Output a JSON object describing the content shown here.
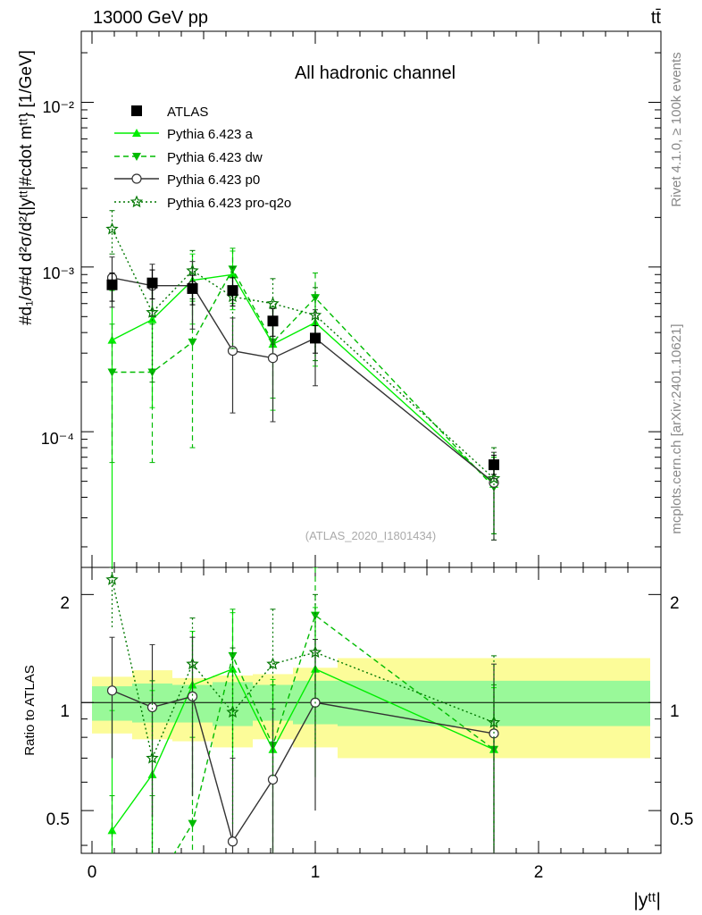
{
  "header": {
    "left": "13000 GeV pp",
    "right": "tt̄"
  },
  "side": {
    "rivet": "Rivet 4.1.0, ≥ 100k events",
    "mcplots": "mcplots.cern.ch [arXiv:2401.10621]"
  },
  "top_panel": {
    "title": "All hadronic channel",
    "watermark": "(ATLAS_2020_I1801434)",
    "ylabel": "#d₁/σ#d d²σ/d²{|yᵗᵗ|#cdot mᵗᵗ} [1/GeV]"
  },
  "bottom_panel": {
    "ylabel": "Ratio to ATLAS"
  },
  "xaxis": {
    "label": "|yᵗᵗ|"
  },
  "colors": {
    "atlas": "#000000",
    "a": "#00ee00",
    "dw": "#00bb00",
    "p0": "#333333",
    "proq2o": "#007700",
    "band_inner": "#99f999",
    "band_outer": "#fcfc99"
  },
  "chart_data": {
    "type": "line",
    "title": "All hadronic channel",
    "xlabel": "|y^tt|",
    "ylabel": "1/σ d²σ/d|y^tt| d m^tt [1/GeV]",
    "ylabel_ratio": "Ratio to ATLAS",
    "xlim": [
      -0.1,
      2.56
    ],
    "ylim": [
      1.5e-05,
      0.027
    ],
    "ylim_ratio": [
      0.38,
      2.38
    ],
    "yscale": "log",
    "x_ticks": [
      "0",
      "1",
      "2"
    ],
    "y_ticks": [
      "10⁻⁴",
      "10⁻³",
      "10⁻²"
    ],
    "ratio_ticks": [
      "0.5",
      "1",
      "2"
    ],
    "x": [
      0.09,
      0.27,
      0.45,
      0.63,
      0.81,
      1.0,
      1.8
    ],
    "bin_edges": [
      0,
      0.18,
      0.36,
      0.54,
      0.72,
      0.9,
      1.1,
      2.5
    ],
    "atlas": [
      0.00078,
      0.0008,
      0.00074,
      0.00072,
      0.00047,
      0.00037,
      6.3e-05
    ],
    "ratio_band_inner": [
      [
        0.89,
        1.11
      ],
      [
        0.88,
        1.13
      ],
      [
        0.88,
        1.12
      ],
      [
        0.86,
        1.14
      ],
      [
        0.89,
        1.12
      ],
      [
        0.87,
        1.15
      ],
      [
        0.86,
        1.15
      ]
    ],
    "ratio_band_outer": [
      [
        0.82,
        1.18
      ],
      [
        0.79,
        1.23
      ],
      [
        0.78,
        1.17
      ],
      [
        0.75,
        1.19
      ],
      [
        0.79,
        1.2
      ],
      [
        0.75,
        1.25
      ],
      [
        0.7,
        1.33
      ]
    ],
    "series": [
      {
        "name": "ATLAS",
        "key": "atlas",
        "marker": "square",
        "dash": "",
        "values": [
          0.00078,
          0.0008,
          0.00074,
          0.00072,
          0.00047,
          0.00037,
          6.3e-05
        ],
        "ratio": [
          1,
          1,
          1,
          1,
          1,
          1,
          1
        ],
        "err_lo": [
          0.00062,
          0.00064,
          0.00059,
          0.00058,
          0.00038,
          0.0003,
          5.5e-05
        ],
        "err_hi": [
          0.00092,
          0.00096,
          0.00089,
          0.00086,
          0.00056,
          0.00044,
          7.2e-05
        ],
        "rerr_lo": [
          null,
          null,
          null,
          null,
          null,
          null,
          null
        ],
        "rerr_hi": [
          null,
          null,
          null,
          null,
          null,
          null,
          null
        ]
      },
      {
        "name": "Pythia 6.423 a",
        "key": "a",
        "marker": "triangle-up",
        "dash": "",
        "values": [
          0.00036,
          0.00048,
          0.00083,
          0.0009,
          0.00034,
          0.00046,
          4.8e-05
        ],
        "ratio": [
          0.44,
          0.63,
          1.12,
          1.24,
          0.74,
          1.24,
          0.74
        ],
        "err_lo": [
          1.5e-05,
          0.00014,
          0.00045,
          0.00055,
          0.000135,
          0.00025,
          2.4e-05
        ],
        "err_hi": [
          0.00072,
          0.00082,
          0.0012,
          0.00125,
          0.00056,
          0.00068,
          7e-05
        ],
        "rerr_lo": [
          0.3,
          0.2,
          0.55,
          0.7,
          0.38,
          0.62,
          0.36
        ],
        "rerr_hi": [
          0.95,
          1.08,
          1.58,
          1.78,
          1.16,
          1.84,
          1.1
        ]
      },
      {
        "name": "Pythia 6.423 dw",
        "key": "dw",
        "marker": "triangle-down",
        "dash": "6,4",
        "values": [
          0.00023,
          0.00023,
          0.00035,
          0.00097,
          0.00035,
          0.00065,
          4.6e-05
        ],
        "ratio": [
          0.3,
          0.3,
          0.46,
          1.35,
          0.76,
          1.75,
          0.74
        ],
        "err_lo": [
          6.5e-05,
          6.5e-05,
          8e-05,
          0.0006,
          0.00016,
          0.00038,
          2.2e-05
        ],
        "err_hi": [
          0.00045,
          0.00045,
          0.00062,
          0.0013,
          0.00056,
          0.00092,
          7e-05
        ],
        "rerr_lo": [
          0.2,
          0.2,
          0.22,
          0.75,
          0.38,
          1.05,
          0.36
        ],
        "rerr_hi": [
          0.55,
          0.55,
          0.8,
          1.82,
          1.12,
          2.4,
          1.12
        ]
      },
      {
        "name": "Pythia 6.423 p0",
        "key": "p0",
        "marker": "circle",
        "dash": "",
        "values": [
          0.00086,
          0.00077,
          0.00077,
          0.00031,
          0.00028,
          0.00037,
          4.9e-05
        ],
        "ratio": [
          1.08,
          0.97,
          1.04,
          0.41,
          0.61,
          1.0,
          0.82
        ],
        "err_lo": [
          0.00057,
          0.0005,
          0.00042,
          0.00013,
          0.000115,
          0.00019,
          2.2e-05
        ],
        "err_hi": [
          0.00115,
          0.00104,
          0.00108,
          0.00049,
          0.00044,
          0.00055,
          7.5e-05
        ],
        "rerr_lo": [
          0.7,
          0.48,
          0.55,
          0.15,
          0.25,
          0.5,
          0.38
        ],
        "rerr_hi": [
          1.52,
          1.45,
          1.52,
          0.7,
          0.96,
          1.5,
          1.28
        ]
      },
      {
        "name": "Pythia 6.423 pro-q2o",
        "key": "proq2o",
        "marker": "star",
        "dash": "2,3",
        "values": [
          0.0017,
          0.00053,
          0.00095,
          0.00066,
          0.0006,
          0.00051,
          5.2e-05
        ],
        "ratio": [
          2.2,
          0.7,
          1.28,
          0.94,
          1.28,
          1.38,
          0.88
        ],
        "err_lo": [
          0.0012,
          0.0002,
          0.00064,
          0.00032,
          0.00034,
          0.00027,
          2.4e-05
        ],
        "err_hi": [
          0.0022,
          0.00085,
          0.00126,
          0.001,
          0.00085,
          0.00075,
          8e-05
        ],
        "rerr_lo": [
          1.6,
          0.25,
          0.85,
          0.45,
          0.62,
          0.75,
          0.4
        ],
        "rerr_hi": [
          2.8,
          1.15,
          1.72,
          1.42,
          1.82,
          2.0,
          1.35
        ]
      }
    ]
  }
}
